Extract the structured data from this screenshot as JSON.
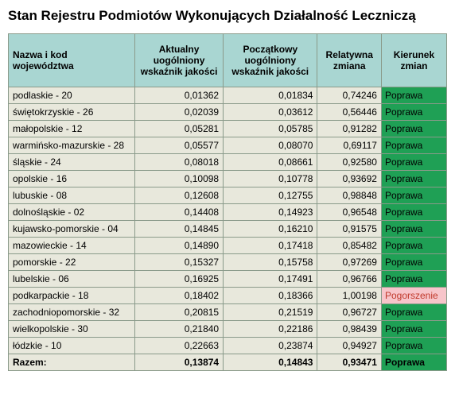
{
  "title": "Stan Rejestru Podmiotów Wykonujących Działalność Leczniczą",
  "headers": {
    "name": "Nazwa i kod województwa",
    "current": "Aktualny uogólniony wskaźnik jakości",
    "initial": "Początkowy uogólniony wskaźnik jakości",
    "relative": "Relatywna zmiana",
    "direction": "Kierunek zmian"
  },
  "rows": [
    {
      "name": "podlaskie - 20",
      "current": "0,01362",
      "initial": "0,01834",
      "relative": "0,74246",
      "direction": "Poprawa",
      "dirClass": "poprawa"
    },
    {
      "name": "świętokrzyskie - 26",
      "current": "0,02039",
      "initial": "0,03612",
      "relative": "0,56446",
      "direction": "Poprawa",
      "dirClass": "poprawa"
    },
    {
      "name": "małopolskie - 12",
      "current": "0,05281",
      "initial": "0,05785",
      "relative": "0,91282",
      "direction": "Poprawa",
      "dirClass": "poprawa"
    },
    {
      "name": "warmińsko-mazurskie - 28",
      "current": "0,05577",
      "initial": "0,08070",
      "relative": "0,69117",
      "direction": "Poprawa",
      "dirClass": "poprawa"
    },
    {
      "name": "śląskie - 24",
      "current": "0,08018",
      "initial": "0,08661",
      "relative": "0,92580",
      "direction": "Poprawa",
      "dirClass": "poprawa"
    },
    {
      "name": "opolskie - 16",
      "current": "0,10098",
      "initial": "0,10778",
      "relative": "0,93692",
      "direction": "Poprawa",
      "dirClass": "poprawa"
    },
    {
      "name": "lubuskie - 08",
      "current": "0,12608",
      "initial": "0,12755",
      "relative": "0,98848",
      "direction": "Poprawa",
      "dirClass": "poprawa"
    },
    {
      "name": "dolnośląskie - 02",
      "current": "0,14408",
      "initial": "0,14923",
      "relative": "0,96548",
      "direction": "Poprawa",
      "dirClass": "poprawa"
    },
    {
      "name": "kujawsko-pomorskie - 04",
      "current": "0,14845",
      "initial": "0,16210",
      "relative": "0,91575",
      "direction": "Poprawa",
      "dirClass": "poprawa"
    },
    {
      "name": "mazowieckie - 14",
      "current": "0,14890",
      "initial": "0,17418",
      "relative": "0,85482",
      "direction": "Poprawa",
      "dirClass": "poprawa"
    },
    {
      "name": "pomorskie - 22",
      "current": "0,15327",
      "initial": "0,15758",
      "relative": "0,97269",
      "direction": "Poprawa",
      "dirClass": "poprawa"
    },
    {
      "name": "lubelskie - 06",
      "current": "0,16925",
      "initial": "0,17491",
      "relative": "0,96766",
      "direction": "Poprawa",
      "dirClass": "poprawa"
    },
    {
      "name": "podkarpackie - 18",
      "current": "0,18402",
      "initial": "0,18366",
      "relative": "1,00198",
      "direction": "Pogorszenie",
      "dirClass": "pogorszenie"
    },
    {
      "name": "zachodniopomorskie - 32",
      "current": "0,20815",
      "initial": "0,21519",
      "relative": "0,96727",
      "direction": "Poprawa",
      "dirClass": "poprawa"
    },
    {
      "name": "wielkopolskie - 30",
      "current": "0,21840",
      "initial": "0,22186",
      "relative": "0,98439",
      "direction": "Poprawa",
      "dirClass": "poprawa"
    },
    {
      "name": "łódzkie - 10",
      "current": "0,22663",
      "initial": "0,23874",
      "relative": "0,94927",
      "direction": "Poprawa",
      "dirClass": "poprawa"
    }
  ],
  "total": {
    "name": "Razem:",
    "current": "0,13874",
    "initial": "0,14843",
    "relative": "0,93471",
    "direction": "Poprawa",
    "dirClass": "poprawa"
  },
  "colors": {
    "header_bg": "#a9d6d2",
    "cell_bg": "#e8e8dc",
    "border": "#8a9a8a",
    "poprawa_bg": "#1fa055",
    "pogorszenie_bg": "#f7c5ca",
    "pogorszenie_text": "#c0392b"
  }
}
